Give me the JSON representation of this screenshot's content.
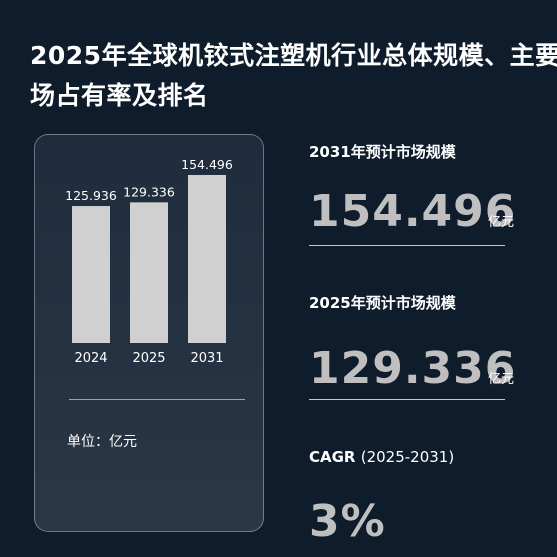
{
  "title": "2025年全球机铰式注塑机行业总体规模、主要\n场占有率及排名",
  "chart_data": {
    "type": "bar",
    "categories": [
      "2024",
      "2025",
      "2031"
    ],
    "values": [
      125.936,
      129.336,
      154.496
    ],
    "value_labels": [
      "125.936",
      "129.336",
      "154.496"
    ],
    "ylim": [
      0,
      160
    ],
    "bar_color": "#d0d0d0",
    "unit_label": "单位：亿元"
  },
  "stats": {
    "s2031": {
      "label": "2031年预计市场规模",
      "value": "154.496",
      "unit": "亿元"
    },
    "s2025": {
      "label": "2025年预计市场规模",
      "value": "129.336",
      "unit": "亿元"
    },
    "cagr": {
      "label": "CAGR",
      "period": "(2025-2031)",
      "value": "3%"
    }
  }
}
